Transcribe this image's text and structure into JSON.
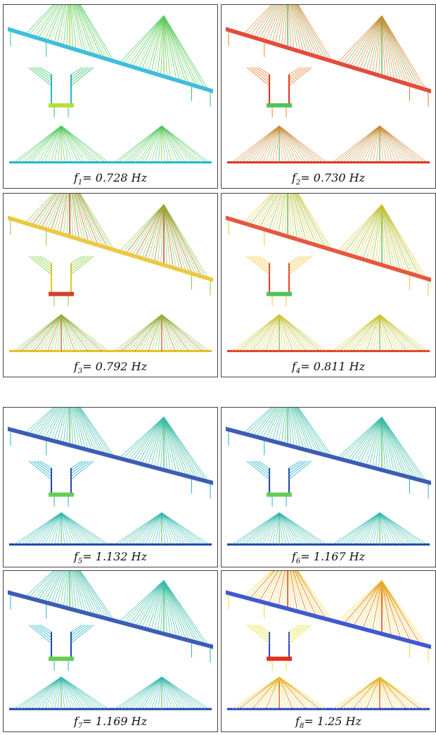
{
  "panels": [
    {
      "label": "f",
      "sub": "1",
      "value": "= 0.728 Hz",
      "palette": "cyan-green"
    },
    {
      "label": "f",
      "sub": "2",
      "value": "= 0.730 Hz",
      "palette": "red-green"
    },
    {
      "label": "f",
      "sub": "3",
      "value": "= 0.792 Hz",
      "palette": "yellow-green"
    },
    {
      "label": "f",
      "sub": "4",
      "value": "= 0.811 Hz",
      "palette": "red-yellow"
    },
    {
      "label": "f",
      "sub": "5",
      "value": "= 1.132 Hz",
      "palette": "blue-green"
    },
    {
      "label": "f",
      "sub": "6",
      "value": "= 1.167 Hz",
      "palette": "blue-green"
    },
    {
      "label": "f",
      "sub": "7",
      "value": "= 1.169 Hz",
      "palette": "blue-green"
    },
    {
      "label": "f",
      "sub": "8",
      "value": "= 1.25 Hz",
      "palette": "rainbow"
    }
  ],
  "colors": {
    "cyan-green": [
      "#1fb3d6",
      "#36c26a",
      "#b5dd3a"
    ],
    "red-green": [
      "#e02a1c",
      "#f07a2a",
      "#4fc25a"
    ],
    "yellow-green": [
      "#e8c020",
      "#7ccf3a",
      "#d43f2a"
    ],
    "red-yellow": [
      "#e23a1f",
      "#f2c32c",
      "#4fc25a"
    ],
    "blue-green": [
      "#1b3fa8",
      "#26b2c8",
      "#63cf52"
    ],
    "rainbow": [
      "#1e3cc9",
      "#e9df2b",
      "#e2311d"
    ]
  }
}
